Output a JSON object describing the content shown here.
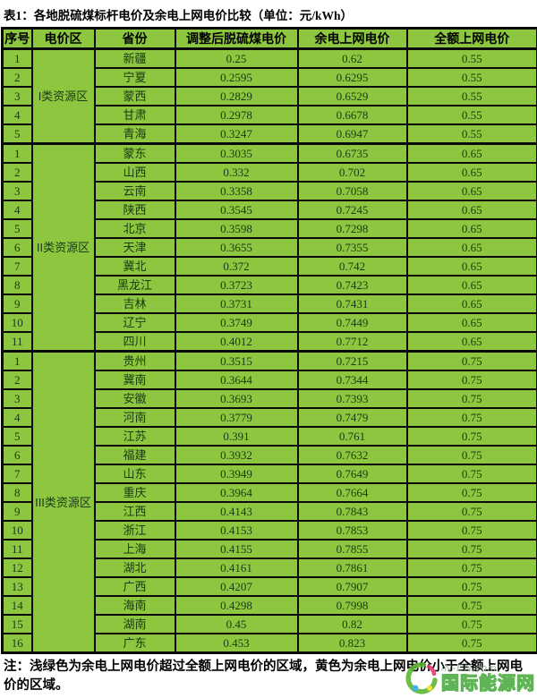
{
  "title": "表1：各地脱硫煤标杆电价及余电上网电价比较（单位：元/kWh）",
  "columns": [
    "序号",
    "电价区",
    "省份",
    "调整后脱硫煤电价",
    "余电上网电价",
    "全额上网电价"
  ],
  "sections": [
    {
      "region": "I类资源区",
      "rows": [
        {
          "no": "1",
          "province": "新疆",
          "benchmark": "0.25",
          "surplus": "0.62",
          "full": "0.55",
          "highlight": false
        },
        {
          "no": "2",
          "province": "宁夏",
          "benchmark": "0.2595",
          "surplus": "0.6295",
          "full": "0.55",
          "highlight": false
        },
        {
          "no": "3",
          "province": "蒙西",
          "benchmark": "0.2829",
          "surplus": "0.6529",
          "full": "0.55",
          "highlight": false
        },
        {
          "no": "4",
          "province": "甘肃",
          "benchmark": "0.2978",
          "surplus": "0.6678",
          "full": "0.55",
          "highlight": false
        },
        {
          "no": "5",
          "province": "青海",
          "benchmark": "0.3247",
          "surplus": "0.6947",
          "full": "0.55",
          "highlight": false
        }
      ]
    },
    {
      "region": "II类资源区",
      "rows": [
        {
          "no": "1",
          "province": "蒙东",
          "benchmark": "0.3035",
          "surplus": "0.6735",
          "full": "0.65",
          "highlight": false
        },
        {
          "no": "2",
          "province": "山西",
          "benchmark": "0.332",
          "surplus": "0.702",
          "full": "0.65",
          "highlight": false
        },
        {
          "no": "3",
          "province": "云南",
          "benchmark": "0.3358",
          "surplus": "0.7058",
          "full": "0.65",
          "highlight": false
        },
        {
          "no": "4",
          "province": "陕西",
          "benchmark": "0.3545",
          "surplus": "0.7245",
          "full": "0.65",
          "highlight": false
        },
        {
          "no": "5",
          "province": "北京",
          "benchmark": "0.3598",
          "surplus": "0.7298",
          "full": "0.65",
          "highlight": false
        },
        {
          "no": "6",
          "province": "天津",
          "benchmark": "0.3655",
          "surplus": "0.7355",
          "full": "0.65",
          "highlight": false
        },
        {
          "no": "7",
          "province": "冀北",
          "benchmark": "0.372",
          "surplus": "0.742",
          "full": "0.65",
          "highlight": false
        },
        {
          "no": "8",
          "province": "黑龙江",
          "benchmark": "0.3723",
          "surplus": "0.7423",
          "full": "0.65",
          "highlight": false
        },
        {
          "no": "9",
          "province": "吉林",
          "benchmark": "0.3731",
          "surplus": "0.7431",
          "full": "0.65",
          "highlight": false
        },
        {
          "no": "10",
          "province": "辽宁",
          "benchmark": "0.3749",
          "surplus": "0.7449",
          "full": "0.65",
          "highlight": false
        },
        {
          "no": "11",
          "province": "四川",
          "benchmark": "0.4012",
          "surplus": "0.7712",
          "full": "0.65",
          "highlight": false
        }
      ]
    },
    {
      "region": "III类资源区",
      "rows": [
        {
          "no": "1",
          "province": "贵州",
          "benchmark": "0.3515",
          "surplus": "0.7215",
          "full": "0.75",
          "highlight": true
        },
        {
          "no": "2",
          "province": "冀南",
          "benchmark": "0.3644",
          "surplus": "0.7344",
          "full": "0.75",
          "highlight": true
        },
        {
          "no": "3",
          "province": "安徽",
          "benchmark": "0.3693",
          "surplus": "0.7393",
          "full": "0.75",
          "highlight": true
        },
        {
          "no": "4",
          "province": "河南",
          "benchmark": "0.3779",
          "surplus": "0.7479",
          "full": "0.75",
          "highlight": true
        },
        {
          "no": "5",
          "province": "江苏",
          "benchmark": "0.391",
          "surplus": "0.761",
          "full": "0.75",
          "highlight": false
        },
        {
          "no": "6",
          "province": "福建",
          "benchmark": "0.3932",
          "surplus": "0.7632",
          "full": "0.75",
          "highlight": false
        },
        {
          "no": "7",
          "province": "山东",
          "benchmark": "0.3949",
          "surplus": "0.7649",
          "full": "0.75",
          "highlight": false
        },
        {
          "no": "8",
          "province": "重庆",
          "benchmark": "0.3964",
          "surplus": "0.7664",
          "full": "0.75",
          "highlight": false
        },
        {
          "no": "9",
          "province": "江西",
          "benchmark": "0.4143",
          "surplus": "0.7843",
          "full": "0.75",
          "highlight": false
        },
        {
          "no": "10",
          "province": "浙江",
          "benchmark": "0.4153",
          "surplus": "0.7853",
          "full": "0.75",
          "highlight": false
        },
        {
          "no": "11",
          "province": "上海",
          "benchmark": "0.4155",
          "surplus": "0.7855",
          "full": "0.75",
          "highlight": false
        },
        {
          "no": "12",
          "province": "湖北",
          "benchmark": "0.4161",
          "surplus": "0.7861",
          "full": "0.75",
          "highlight": false
        },
        {
          "no": "13",
          "province": "广西",
          "benchmark": "0.4207",
          "surplus": "0.7907",
          "full": "0.75",
          "highlight": false
        },
        {
          "no": "14",
          "province": "海南",
          "benchmark": "0.4298",
          "surplus": "0.7998",
          "full": "0.75",
          "highlight": false
        },
        {
          "no": "15",
          "province": "湖南",
          "benchmark": "0.45",
          "surplus": "0.82",
          "full": "0.75",
          "highlight": false
        },
        {
          "no": "16",
          "province": "广东",
          "benchmark": "0.453",
          "surplus": "0.823",
          "full": "0.75",
          "highlight": false
        }
      ]
    }
  ],
  "note": "注：浅绿色为余电上网电价超过全额上网电价的区域，黄色为余电上网电价小于全额上网电价的区域。",
  "watermark": {
    "site": "iN-EN.com",
    "name": "国际能源网"
  },
  "colors": {
    "cell_green": "#8dc63f",
    "highlight_yellow": "#ffff00",
    "border": "#0a0a0a",
    "cell_text": "#1b3a14",
    "watermark_green": "#4aaa3e"
  }
}
